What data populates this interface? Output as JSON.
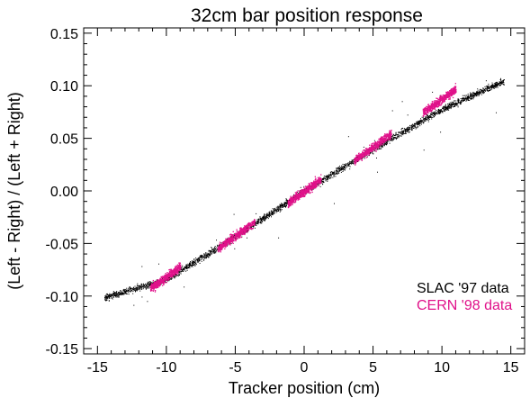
{
  "chart_data": {
    "type": "scatter",
    "title": "32cm bar position response",
    "xlabel": "Tracker position (cm)",
    "ylabel": "(Left - Right) / (Left + Right)",
    "xlim": [
      -16,
      16
    ],
    "ylim": [
      -0.155,
      0.155
    ],
    "xticks": [
      -15,
      -10,
      -5,
      0,
      5,
      10,
      15
    ],
    "xtick_labels": [
      "-15",
      "-10",
      "-5",
      "0",
      "5",
      "10",
      "15"
    ],
    "yticks": [
      -0.15,
      -0.1,
      -0.05,
      0.0,
      0.05,
      0.1,
      0.15
    ],
    "ytick_labels": [
      "-0.15",
      "-0.10",
      "-0.05",
      "0.00",
      "0.05",
      "0.10",
      "0.15"
    ],
    "grid": false,
    "legend_position": "bottom-right",
    "series": [
      {
        "name": "SLAC '97 data",
        "color": "#000000",
        "x_range": [
          -14.5,
          14.5
        ],
        "trend": [
          [
            -14.5,
            -0.101
          ],
          [
            -10,
            -0.084
          ],
          [
            -5,
            -0.043
          ],
          [
            0,
            0.0
          ],
          [
            5,
            0.04
          ],
          [
            10,
            0.078
          ],
          [
            14.5,
            0.105
          ]
        ]
      },
      {
        "name": "CERN '98 data",
        "color": "#e0128a",
        "clusters": [
          {
            "x_range": [
              -11.2,
              -9.0
            ],
            "y_center": -0.082
          },
          {
            "x_range": [
              -6.3,
              -3.6
            ],
            "y_center": -0.042
          },
          {
            "x_range": [
              -1.2,
              1.2
            ],
            "y_center": 0.0
          },
          {
            "x_range": [
              3.6,
              6.3
            ],
            "y_center": 0.042
          },
          {
            "x_range": [
              8.6,
              11.0
            ],
            "y_center": 0.086
          }
        ]
      }
    ]
  }
}
